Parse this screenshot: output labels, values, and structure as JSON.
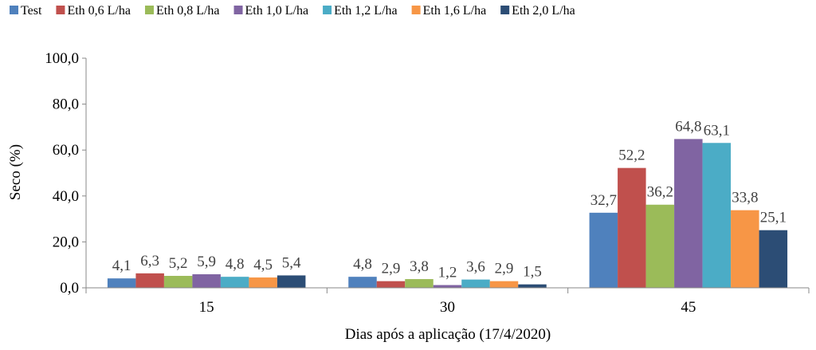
{
  "chart_data": {
    "type": "bar",
    "title": "",
    "xlabel": "Dias após a aplicação (17/4/2020)",
    "ylabel": "Seco (%)",
    "ylim": [
      0,
      100
    ],
    "yticks": [
      "0,0",
      "20,0",
      "40,0",
      "60,0",
      "80,0",
      "100,0"
    ],
    "categories": [
      "15",
      "30",
      "45"
    ],
    "legend_position": "top",
    "grid": false,
    "series": [
      {
        "name": "Test",
        "color": "#4F81BD",
        "values": [
          4.1,
          4.8,
          32.7
        ],
        "labels": [
          "4,1",
          "4,8",
          "32,7"
        ]
      },
      {
        "name": "Eth 0,6 L/ha",
        "color": "#C0504D",
        "values": [
          6.3,
          2.9,
          52.2
        ],
        "labels": [
          "6,3",
          "2,9",
          "52,2"
        ]
      },
      {
        "name": "Eth 0,8 L/ha",
        "color": "#9BBB59",
        "values": [
          5.2,
          3.8,
          36.2
        ],
        "labels": [
          "5,2",
          "3,8",
          "36,2"
        ]
      },
      {
        "name": "Eth 1,0 L/ha",
        "color": "#8064A2",
        "values": [
          5.9,
          1.2,
          64.8
        ],
        "labels": [
          "5,9",
          "1,2",
          "64,8"
        ]
      },
      {
        "name": "Eth 1,2 L/ha",
        "color": "#4BACC6",
        "values": [
          4.8,
          3.6,
          63.1
        ],
        "labels": [
          "4,8",
          "3,6",
          "63,1"
        ]
      },
      {
        "name": "Eth 1,6 L/ha",
        "color": "#F79646",
        "values": [
          4.5,
          2.9,
          33.8
        ],
        "labels": [
          "4,5",
          "2,9",
          "33,8"
        ]
      },
      {
        "name": "Eth 2,0 L/ha",
        "color": "#2C4D75",
        "values": [
          5.4,
          1.5,
          25.1
        ],
        "labels": [
          "5,4",
          "1,5",
          "25,1"
        ]
      }
    ]
  }
}
